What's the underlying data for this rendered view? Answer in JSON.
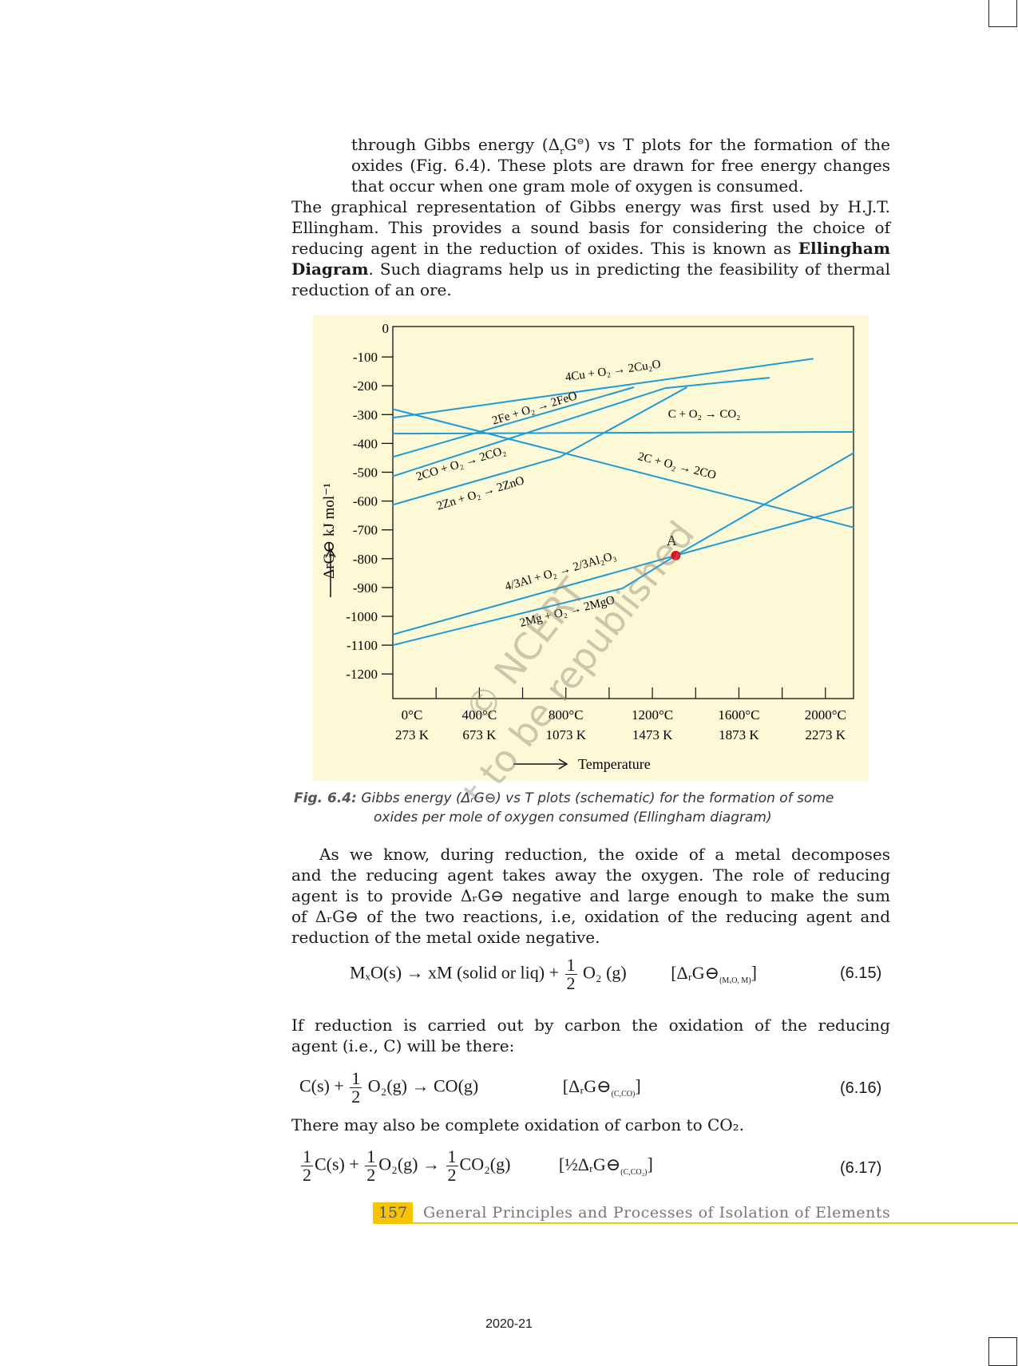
{
  "intro_indented": [
    {
      "pre": "through Gibbs energy (Δ",
      "sub": "r",
      "mid": "G",
      "sup": "⊖",
      "post": ") vs T plots for the formation of the"
    },
    {
      "pre": "oxides (Fig. 6.4). These plots are drawn for free energy changes"
    },
    {
      "pre": "that occur when one gram mole of oxygen is consumed."
    }
  ],
  "para1": [
    "The graphical representation of Gibbs energy was first used by H.J.T.",
    "Ellingham. This provides a sound basis for considering the choice of",
    {
      "pre": "reducing agent in the reduction of oxides. This is known as ",
      "bold": "Ellingham"
    },
    {
      "bold": "Diagram",
      "post": ". Such diagrams help us in predicting the feasibility of thermal"
    },
    "reduction of an ore."
  ],
  "chart_data": {
    "type": "line",
    "title": "",
    "xlabel": "Temperature",
    "ylabel": "ΔrG⊖ kJ mol⁻¹",
    "xlim": [
      0,
      2133
    ],
    "ylim": [
      -1300,
      0
    ],
    "x_ticks": [
      {
        "value": 0,
        "c": "0°C",
        "k": "273 K"
      },
      {
        "value": 400,
        "c": "400°C",
        "k": "673 K"
      },
      {
        "value": 800,
        "c": "800°C",
        "k": "1073 K"
      },
      {
        "value": 1200,
        "c": "1200°C",
        "k": "1473 K"
      },
      {
        "value": 1600,
        "c": "1600°C",
        "k": "1873 K"
      },
      {
        "value": 2000,
        "c": "2000°C",
        "k": "2273 K"
      }
    ],
    "y_ticks": [
      0,
      -100,
      -200,
      -300,
      -400,
      -500,
      -600,
      -700,
      -800,
      -900,
      -1000,
      -1100,
      -1200
    ],
    "line_color": "#1e9ad6",
    "series": [
      {
        "name": "4Cu + O₂ → 2Cu₂O",
        "points": [
          [
            0,
            -311
          ],
          [
            1944,
            -106
          ]
        ],
        "label_at": [
          1020,
          -160
        ],
        "angle": -8
      },
      {
        "name": "2Fe + O₂ → 2FeO",
        "points": [
          [
            0,
            -447
          ],
          [
            1115,
            -205
          ]
        ],
        "label_at": [
          660,
          -290
        ],
        "angle": -17
      },
      {
        "name": "C + O₂ → CO₂",
        "points": [
          [
            0,
            -366
          ],
          [
            2133,
            -360
          ]
        ],
        "label_at": [
          1440,
          -310
        ],
        "angle": 0
      },
      {
        "name": "2C + O₂ → 2CO",
        "points": [
          [
            0,
            -281
          ],
          [
            2133,
            -692
          ]
        ],
        "label_at": [
          1310,
          -490
        ],
        "angle": 14
      },
      {
        "name": "2CO + O₂ → 2CO₂",
        "points": [
          [
            0,
            -514
          ],
          [
            1260,
            -208
          ],
          [
            1742,
            -172
          ]
        ],
        "label_at": [
          320,
          -482
        ],
        "angle": -17
      },
      {
        "name": "2Zn + O₂ → 2ZnO",
        "points": [
          [
            0,
            -613
          ],
          [
            773,
            -447
          ],
          [
            1360,
            -205
          ]
        ],
        "label_at": [
          410,
          -585
        ],
        "angle": -17
      },
      {
        "name": "4/3Al + O₂ → 2/3Al₂O₃",
        "points": [
          [
            0,
            -1063
          ],
          [
            1308,
            -789
          ],
          [
            2133,
            -619
          ]
        ],
        "label_at": [
          780,
          -855
        ],
        "angle": -16
      },
      {
        "name": "2Mg + O₂ → 2MgO",
        "points": [
          [
            0,
            -1100
          ],
          [
            1062,
            -903
          ],
          [
            1308,
            -789
          ],
          [
            2133,
            -432
          ]
        ],
        "label_at": [
          810,
          -995
        ],
        "angle": -14
      }
    ],
    "annotations": [
      {
        "text": "A",
        "point": [
          1308,
          -789
        ],
        "color": "#e3101b"
      }
    ]
  },
  "watermark": [
    "© NCERT",
    "not to be republished"
  ],
  "caption": {
    "label": "Fig. 6.4:",
    "line1": "Gibbs energy (ΔᵣG⊖) vs T plots (schematic) for the formation of some",
    "line2": "oxides per mole of oxygen consumed (Ellingham diagram)"
  },
  "para2": [
    "As we know, during reduction, the oxide of a metal decomposes",
    "and the reducing agent takes away the oxygen. The role of reducing",
    "agent is to provide ΔᵣG⊖ negative and large enough to make the sum",
    "of ΔᵣG⊖ of the two reactions, i.e, oxidation of the reducing agent and",
    "reduction of the metal oxide negative."
  ],
  "eq615": {
    "left": "MₓO(s) → xM (solid or liq) +",
    "num": "1",
    "den": "2",
    "right": "O₂ (g)",
    "dg": "[ΔᵣG⊖",
    "dgsub": "(MₓO, M)",
    "close": "]",
    "no": "(6.15)"
  },
  "para3": [
    "If reduction is carried out by carbon the oxidation of the reducing",
    "agent (i.e., C) will be there:"
  ],
  "eq616": {
    "left": "C(s) +",
    "num": "1",
    "den": "2",
    "right": "O₂(g)  →  CO(g)",
    "dg": "[ΔᵣG⊖",
    "dgsub": "(C,CO)",
    "close": "]",
    "no": "(6.16)"
  },
  "para4": "There may also be complete oxidation of carbon to CO₂.",
  "eq617": {
    "num": "1",
    "den": "2",
    "t1": "C(s) +",
    "t2": "O₂(g)  →",
    "t3": "CO₂(g)",
    "dg": "[½ΔᵣG⊖",
    "dgsub": "(C,CO₂)",
    "close": "]",
    "no": "(6.17)"
  },
  "footer": {
    "page_number": "157",
    "title": "General Principles and Processes of Isolation of Elements",
    "accent": "#f6c400"
  },
  "year": "2020-21"
}
